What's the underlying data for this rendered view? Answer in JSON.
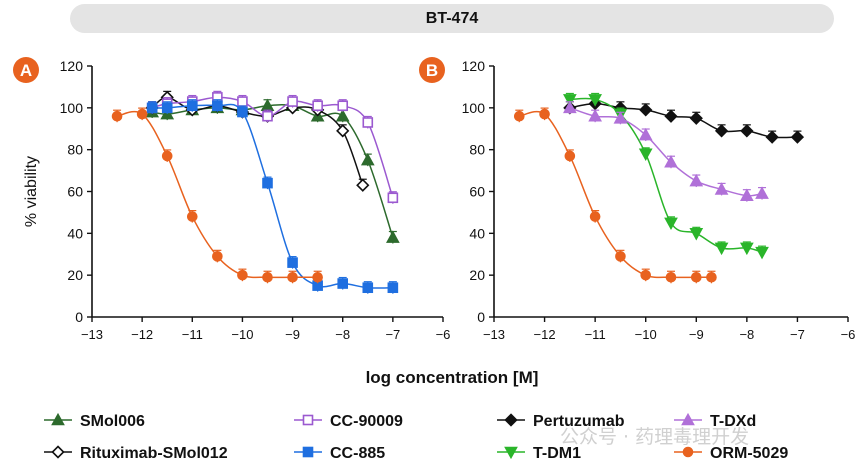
{
  "banner": {
    "title": "BT-474"
  },
  "watermark": {
    "text": "公众号 · 药理毒理开发"
  },
  "chart_data": [
    {
      "panel": "A",
      "type": "scatter",
      "ylabel": "% viability",
      "xlabel": "log concentration [M]",
      "xlim": [
        -13,
        -6
      ],
      "ylim": [
        0,
        120
      ],
      "xticks": [
        -13,
        -12,
        -11,
        -10,
        -9,
        -8,
        -7,
        -6
      ],
      "yticks": [
        0,
        20,
        40,
        60,
        80,
        100,
        120
      ],
      "series": [
        {
          "name": "SMol006",
          "color": "#2d6a2d",
          "marker": "triangle-up",
          "fill": "filled",
          "x": [
            -11.8,
            -11.5,
            -11,
            -10.5,
            -10,
            -9.5,
            -9,
            -8.5,
            -8,
            -7.5,
            -7
          ],
          "y": [
            98,
            97,
            99,
            100,
            99,
            101,
            101,
            96,
            96,
            75,
            38
          ]
        },
        {
          "name": "Rituximab-SMol012",
          "color": "#111111",
          "marker": "diamond",
          "fill": "open",
          "x": [
            -11.8,
            -11.5,
            -11,
            -10.5,
            -10,
            -9.5,
            -9,
            -8.5,
            -8,
            -7.6
          ],
          "y": [
            100,
            105,
            99,
            101,
            98,
            96,
            100,
            99,
            89,
            63
          ]
        },
        {
          "name": "CC-90009",
          "color": "#9b59d0",
          "marker": "square",
          "fill": "open",
          "x": [
            -11.8,
            -11.5,
            -11,
            -10.5,
            -10,
            -9.5,
            -9,
            -8.5,
            -8,
            -7.5,
            -7
          ],
          "y": [
            100,
            102,
            103,
            105,
            103,
            96,
            103,
            101,
            101,
            93,
            57
          ]
        },
        {
          "name": "CC-885",
          "color": "#1f6fe0",
          "marker": "square",
          "fill": "filled",
          "x": [
            -11.8,
            -11.5,
            -11,
            -10.5,
            -10,
            -9.5,
            -9,
            -8.5,
            -8,
            -7.5,
            -7
          ],
          "y": [
            100,
            100,
            101,
            101,
            98,
            64,
            26,
            15,
            16,
            14,
            14
          ]
        },
        {
          "name": "ORM-5029",
          "color": "#e8621f",
          "marker": "circle",
          "fill": "filled",
          "x": [
            -12.5,
            -12,
            -11.5,
            -11,
            -10.5,
            -10,
            -9.5,
            -9,
            -8.5
          ],
          "y": [
            96,
            97,
            77,
            48,
            29,
            20,
            19,
            19,
            19
          ]
        }
      ]
    },
    {
      "panel": "B",
      "type": "scatter",
      "ylabel": "",
      "xlabel": "log concentration [M]",
      "xlim": [
        -13,
        -6
      ],
      "ylim": [
        0,
        120
      ],
      "xticks": [
        -13,
        -12,
        -11,
        -10,
        -9,
        -8,
        -7,
        -6
      ],
      "yticks": [
        0,
        20,
        40,
        60,
        80,
        100,
        120
      ],
      "series": [
        {
          "name": "Pertuzumab",
          "color": "#111111",
          "marker": "diamond",
          "fill": "filled",
          "x": [
            -11.5,
            -11,
            -10.5,
            -10,
            -9.5,
            -9,
            -8.5,
            -8,
            -7.5,
            -7
          ],
          "y": [
            100,
            102,
            100,
            99,
            96,
            95,
            89,
            89,
            86,
            86
          ]
        },
        {
          "name": "T-DM1",
          "color": "#2ab52a",
          "marker": "triangle-down",
          "fill": "filled",
          "x": [
            -11.5,
            -11,
            -10.5,
            -10,
            -9.5,
            -9,
            -8.5,
            -8,
            -7.7
          ],
          "y": [
            104,
            104,
            97,
            78,
            45,
            40,
            33,
            33,
            31
          ]
        },
        {
          "name": "T-DXd",
          "color": "#b070d8",
          "marker": "triangle-up",
          "fill": "filled",
          "x": [
            -11.5,
            -11,
            -10.5,
            -10,
            -9.5,
            -9,
            -8.5,
            -8,
            -7.7
          ],
          "y": [
            100,
            96,
            95,
            87,
            74,
            65,
            61,
            58,
            59
          ]
        },
        {
          "name": "ORM-5029",
          "color": "#e8621f",
          "marker": "circle",
          "fill": "filled",
          "x": [
            -12.5,
            -12,
            -11.5,
            -11,
            -10.5,
            -10,
            -9.5,
            -9,
            -8.7
          ],
          "y": [
            96,
            97,
            77,
            48,
            29,
            20,
            19,
            19,
            19
          ]
        }
      ]
    }
  ],
  "panels": {
    "a_badge": "A",
    "b_badge": "B"
  },
  "legend": [
    {
      "name": "SMol006",
      "color": "#2d6a2d",
      "marker": "triangle-up",
      "fill": "filled"
    },
    {
      "name": "CC-90009",
      "color": "#9b59d0",
      "marker": "square",
      "fill": "open"
    },
    {
      "name": "Pertuzumab",
      "color": "#111111",
      "marker": "diamond",
      "fill": "filled"
    },
    {
      "name": "T-DXd",
      "color": "#b070d8",
      "marker": "triangle-up",
      "fill": "filled"
    },
    {
      "name": "Rituximab-SMol012",
      "color": "#111111",
      "marker": "diamond",
      "fill": "open"
    },
    {
      "name": "CC-885",
      "color": "#1f6fe0",
      "marker": "square",
      "fill": "filled"
    },
    {
      "name": "T-DM1",
      "color": "#2ab52a",
      "marker": "triangle-down",
      "fill": "filled"
    },
    {
      "name": "ORM-5029",
      "color": "#e8621f",
      "marker": "circle",
      "fill": "filled"
    }
  ],
  "badge_color": "#e8621f"
}
